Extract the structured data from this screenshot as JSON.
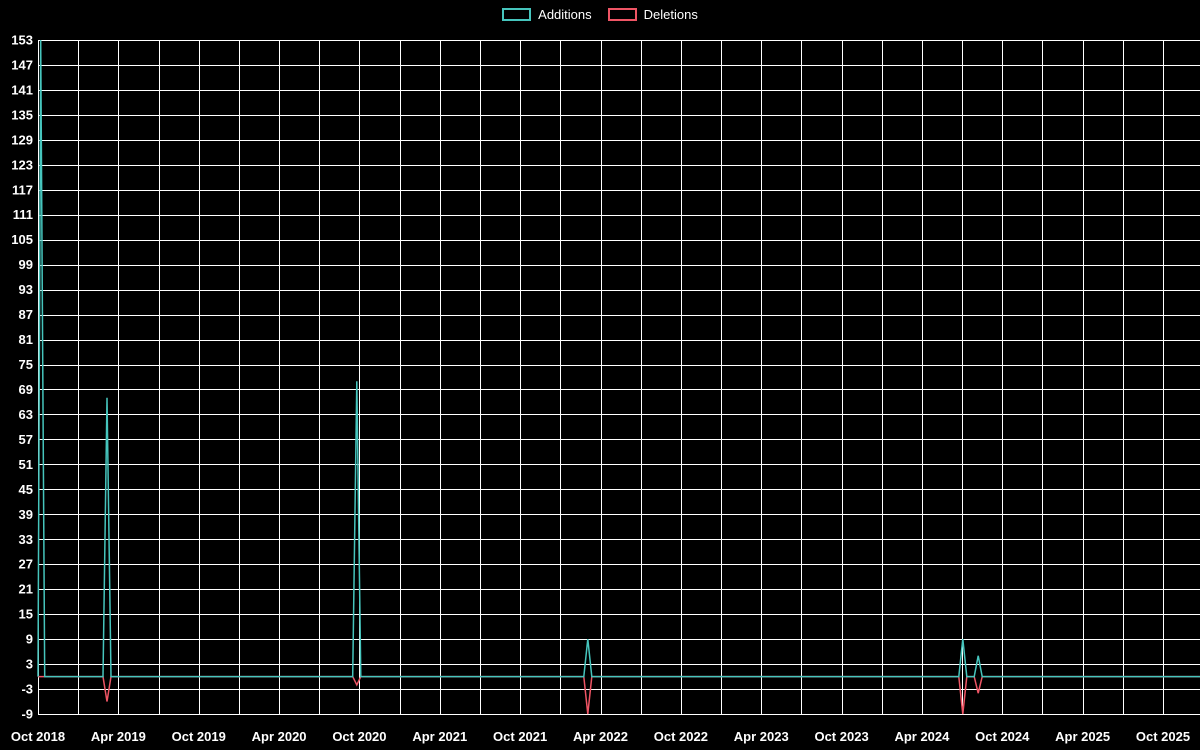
{
  "chart_data": {
    "type": "line",
    "title": "",
    "background_color": "#000000",
    "grid_color": "#ffffff",
    "text_color": "#ffffff",
    "legend": {
      "position": "top-center"
    },
    "x_axis": {
      "tick_labels": [
        "Oct 2018",
        "Apr 2019",
        "Oct 2019",
        "Apr 2020",
        "Oct 2020",
        "Apr 2021",
        "Oct 2021",
        "Apr 2022",
        "Oct 2022",
        "Apr 2023",
        "Oct 2023",
        "Apr 2024",
        "Oct 2024",
        "Apr 2025",
        "Oct 2025"
      ],
      "months_between_labels": 6,
      "gridline_every_months": 3,
      "x_unit": "months_since_first_label"
    },
    "y_axis": {
      "min": -9,
      "max": 153,
      "tick_step": 6,
      "tick_labels": [
        153,
        147,
        141,
        135,
        129,
        123,
        117,
        111,
        105,
        99,
        93,
        87,
        81,
        75,
        69,
        63,
        57,
        51,
        45,
        39,
        33,
        27,
        21,
        15,
        9,
        3,
        -3,
        -9
      ]
    },
    "series": [
      {
        "name": "Additions",
        "color": "#46c5bd",
        "points": [
          [
            0,
            0
          ],
          [
            0.2,
            153
          ],
          [
            0.5,
            0
          ],
          [
            4.85,
            0
          ],
          [
            5.15,
            67
          ],
          [
            5.45,
            0
          ],
          [
            23.5,
            0
          ],
          [
            23.8,
            71
          ],
          [
            24.1,
            0
          ],
          [
            40.75,
            0
          ],
          [
            41.05,
            9
          ],
          [
            41.35,
            0
          ],
          [
            68.75,
            0
          ],
          [
            69.05,
            9
          ],
          [
            69.35,
            0
          ],
          [
            69.9,
            0
          ],
          [
            70.2,
            5
          ],
          [
            70.5,
            0
          ],
          [
            87,
            0
          ]
        ]
      },
      {
        "name": "Deletions",
        "color": "#ef5565",
        "points": [
          [
            0,
            0
          ],
          [
            4.85,
            0
          ],
          [
            5.15,
            -6
          ],
          [
            5.45,
            0
          ],
          [
            23.5,
            0
          ],
          [
            23.8,
            -2
          ],
          [
            24.1,
            0
          ],
          [
            40.75,
            0
          ],
          [
            41.05,
            -9
          ],
          [
            41.35,
            0
          ],
          [
            68.75,
            0
          ],
          [
            69.05,
            -9
          ],
          [
            69.35,
            0
          ],
          [
            69.9,
            0
          ],
          [
            70.2,
            -4
          ],
          [
            70.5,
            0
          ],
          [
            87,
            0
          ]
        ]
      }
    ]
  }
}
